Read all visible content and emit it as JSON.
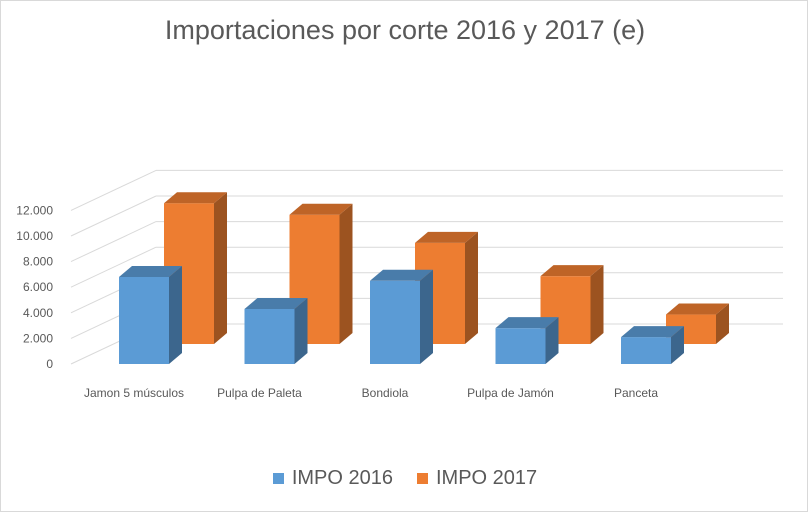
{
  "chart_data": {
    "type": "bar",
    "title": "Importaciones por corte 2016 y 2017 (e)",
    "categories": [
      "Jamon 5 músculos",
      "Pulpa de Paleta",
      "Bondiola",
      "Pulpa de Jamón",
      "Panceta"
    ],
    "series": [
      {
        "name": "IMPO 2016",
        "values": [
          6800,
          4300,
          6500,
          2800,
          2100
        ],
        "color": "#5b9bd5"
      },
      {
        "name": "IMPO 2017",
        "values": [
          11000,
          10100,
          7900,
          5300,
          2300
        ],
        "color": "#ed7d31"
      }
    ],
    "yticks": [
      "0",
      "2.000",
      "4.000",
      "6.000",
      "8.000",
      "10.000",
      "12.000"
    ],
    "ylim": [
      0,
      12000
    ],
    "grid": true,
    "legend_position": "bottom",
    "view": "3d-column"
  }
}
